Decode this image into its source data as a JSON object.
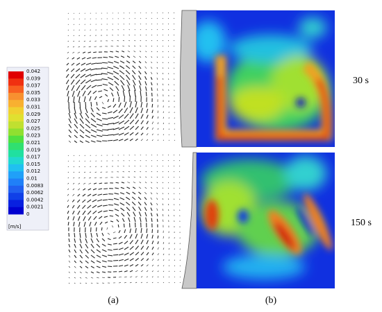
{
  "legend": {
    "labels": [
      "0.042",
      "0.039",
      "0.037",
      "0.035",
      "0.033",
      "0.031",
      "0.029",
      "0.027",
      "0.025",
      "0.023",
      "0.021",
      "0.019",
      "0.017",
      "0.015",
      "0.012",
      "0.01",
      "0.0083",
      "0.0062",
      "0.0042",
      "0.0021",
      "0"
    ],
    "unit": "[m/s]"
  },
  "rows": [
    {
      "label": "30 s"
    },
    {
      "label": "150 s"
    }
  ],
  "captions": [
    "(a)",
    "(b)"
  ]
}
